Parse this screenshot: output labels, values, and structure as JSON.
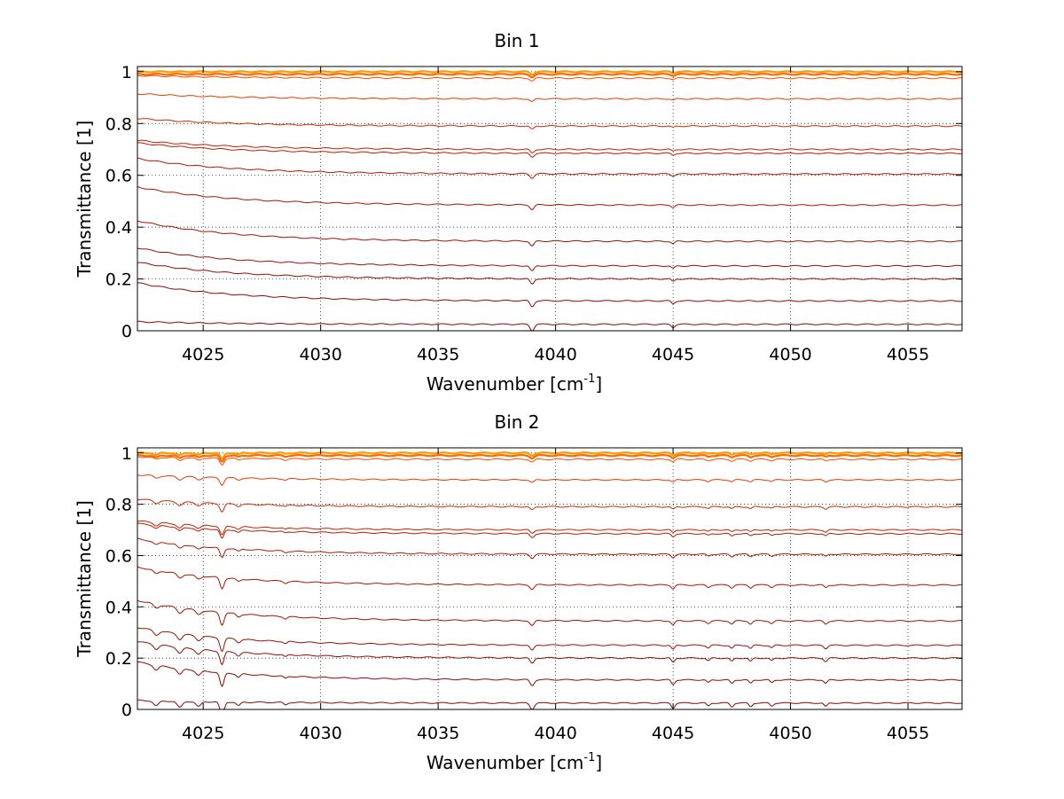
{
  "chart_data": [
    {
      "type": "line",
      "title": "Bin 1",
      "xlabel": "Wavenumber [cm",
      "xlabel_sup": "-1",
      "xlabel_tail": "]",
      "ylabel": "Transmittance [1]",
      "xlim": [
        4022.2,
        4057.3
      ],
      "ylim": [
        0,
        1.02
      ],
      "xticks": [
        4025,
        4030,
        4035,
        4040,
        4045,
        4050,
        4055
      ],
      "yticks": [
        0,
        0.2,
        0.4,
        0.6,
        0.8,
        1
      ],
      "ytick_labels": [
        "0",
        "0.2",
        "0.4",
        "0.6",
        "0.8",
        "1"
      ],
      "grid": true,
      "baselines": [
        1.0,
        0.99,
        0.975,
        0.895,
        0.79,
        0.7,
        0.685,
        0.605,
        0.485,
        0.345,
        0.25,
        0.2,
        0.115,
        0.025,
        0.0
      ],
      "start_offsets": [
        0.0,
        0.0,
        0.01,
        0.02,
        0.03,
        0.035,
        0.04,
        0.06,
        0.07,
        0.08,
        0.07,
        0.065,
        0.07,
        0.01,
        0.0
      ],
      "dips": [
        {
          "x": 4039.0,
          "depth": 0.025,
          "width": 0.12
        },
        {
          "x": 4045.0,
          "depth": 0.012,
          "width": 0.1
        }
      ],
      "colors": [
        "#ff9900",
        "#ff6a00",
        "#ff4a00",
        "#e63a00",
        "#cc2a00",
        "#c02000",
        "#b81c00",
        "#b01800",
        "#a81400",
        "#a01200",
        "#981000",
        "#900e00",
        "#880c00",
        "#800a00",
        "#700000"
      ]
    },
    {
      "type": "line",
      "title": "Bin 2",
      "xlabel": "Wavenumber [cm",
      "xlabel_sup": "-1",
      "xlabel_tail": "]",
      "ylabel": "Transmittance [1]",
      "xlim": [
        4022.2,
        4057.3
      ],
      "ylim": [
        0,
        1.02
      ],
      "xticks": [
        4025,
        4030,
        4035,
        4040,
        4045,
        4050,
        4055
      ],
      "yticks": [
        0,
        0.2,
        0.4,
        0.6,
        0.8,
        1
      ],
      "ytick_labels": [
        "0",
        "0.2",
        "0.4",
        "0.6",
        "0.8",
        "1"
      ],
      "grid": true,
      "baselines": [
        1.0,
        0.99,
        0.975,
        0.895,
        0.79,
        0.7,
        0.685,
        0.605,
        0.485,
        0.345,
        0.25,
        0.2,
        0.115,
        0.025,
        0.0
      ],
      "start_offsets": [
        0.0,
        0.0,
        0.01,
        0.02,
        0.03,
        0.035,
        0.04,
        0.06,
        0.07,
        0.08,
        0.07,
        0.065,
        0.07,
        0.01,
        0.0
      ],
      "dips": [
        {
          "x": 4023.0,
          "depth": 0.02,
          "width": 0.15
        },
        {
          "x": 4024.0,
          "depth": 0.025,
          "width": 0.15
        },
        {
          "x": 4024.8,
          "depth": 0.02,
          "width": 0.15
        },
        {
          "x": 4025.8,
          "depth": 0.06,
          "width": 0.12
        },
        {
          "x": 4026.5,
          "depth": 0.015,
          "width": 0.12
        },
        {
          "x": 4028.5,
          "depth": 0.01,
          "width": 0.1
        },
        {
          "x": 4039.0,
          "depth": 0.025,
          "width": 0.12
        },
        {
          "x": 4045.0,
          "depth": 0.02,
          "width": 0.1
        },
        {
          "x": 4046.5,
          "depth": 0.012,
          "width": 0.1
        },
        {
          "x": 4047.5,
          "depth": 0.015,
          "width": 0.1
        },
        {
          "x": 4048.3,
          "depth": 0.015,
          "width": 0.1
        },
        {
          "x": 4049.2,
          "depth": 0.012,
          "width": 0.1
        },
        {
          "x": 4051.5,
          "depth": 0.015,
          "width": 0.1
        }
      ],
      "colors": [
        "#ff9900",
        "#ff6a00",
        "#ff4a00",
        "#e63a00",
        "#cc2a00",
        "#c02000",
        "#b81c00",
        "#b01800",
        "#a81400",
        "#a01200",
        "#981000",
        "#900e00",
        "#880c00",
        "#800a00",
        "#700000"
      ]
    }
  ]
}
